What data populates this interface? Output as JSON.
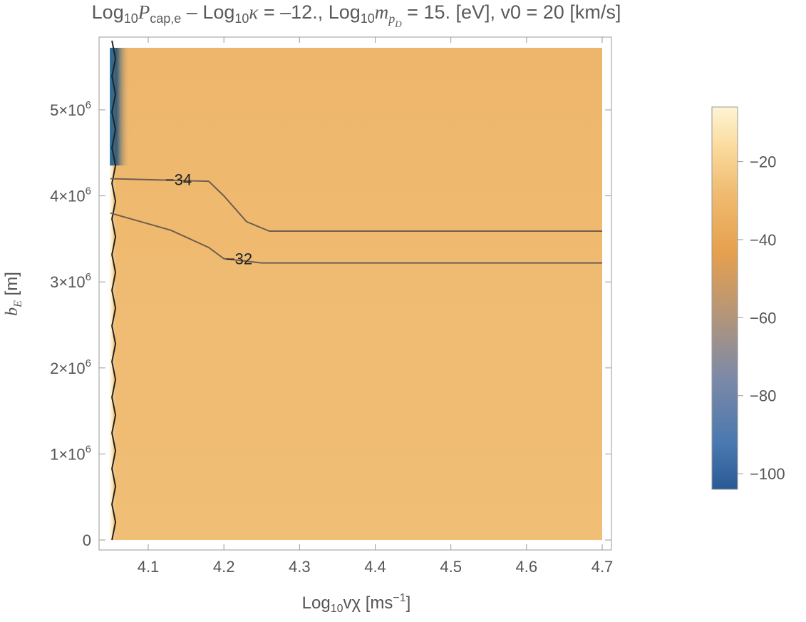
{
  "chart_data": {
    "type": "heatmap",
    "title_parts": {
      "p1": "Log",
      "p1sub": "10",
      "p2": "P",
      "p2sub": "cap,e",
      "p3": " – Log",
      "p3sub": "10",
      "p4": "κ",
      "p5": " = –12., Log",
      "p5sub": "10",
      "p6": "m",
      "p6sub": "p",
      "p6subsub": "D",
      "p7": " = 15. [eV], v0 = 20 [km/s]"
    },
    "xlabel_parts": {
      "a": "Log",
      "asub": "10",
      "b": "vχ [ms",
      "bsup": "−1",
      "c": "]"
    },
    "ylabel": {
      "main": "b",
      "sub": "E",
      "unit": " [m]"
    },
    "xlim": [
      4.04,
      4.7
    ],
    "ylim": [
      0,
      5700000
    ],
    "x_ticks": [
      "4.1",
      "4.2",
      "4.3",
      "4.4",
      "4.5",
      "4.6",
      "4.7"
    ],
    "x_tick_values": [
      4.1,
      4.2,
      4.3,
      4.4,
      4.5,
      4.6,
      4.7
    ],
    "y_ticks": [
      {
        "value": 0,
        "label": "0"
      },
      {
        "value": 1000000,
        "label": "1×10",
        "exp": "6"
      },
      {
        "value": 2000000,
        "label": "2×10",
        "exp": "6"
      },
      {
        "value": 3000000,
        "label": "3×10",
        "exp": "6"
      },
      {
        "value": 4000000,
        "label": "4×10",
        "exp": "6"
      },
      {
        "value": 5000000,
        "label": "5×10",
        "exp": "6"
      }
    ],
    "contours": [
      {
        "label": "−34",
        "level": -34,
        "points": [
          [
            4.05,
            4200000
          ],
          [
            4.18,
            4170000
          ],
          [
            4.2,
            4000000
          ],
          [
            4.23,
            3700000
          ],
          [
            4.26,
            3590000
          ],
          [
            4.7,
            3590000
          ]
        ]
      },
      {
        "label": "−32",
        "level": -32,
        "points": [
          [
            4.05,
            3800000
          ],
          [
            4.13,
            3600000
          ],
          [
            4.18,
            3400000
          ],
          [
            4.2,
            3270000
          ],
          [
            4.25,
            3220000
          ],
          [
            4.7,
            3220000
          ]
        ]
      }
    ],
    "colorbar": {
      "ticks": [
        {
          "value": -20,
          "label": "−20"
        },
        {
          "value": -40,
          "label": "−40"
        },
        {
          "value": -60,
          "label": "−60"
        },
        {
          "value": -80,
          "label": "−80"
        },
        {
          "value": -100,
          "label": "−100"
        }
      ],
      "range": [
        -104,
        -6
      ],
      "colors": [
        "#2a5a95",
        "#4a78b0",
        "#7f8aa6",
        "#b2957a",
        "#e6a04e",
        "#f0bc72",
        "#fbdc9f",
        "#fef4d4"
      ]
    },
    "fill_color": "#f0bb72"
  }
}
